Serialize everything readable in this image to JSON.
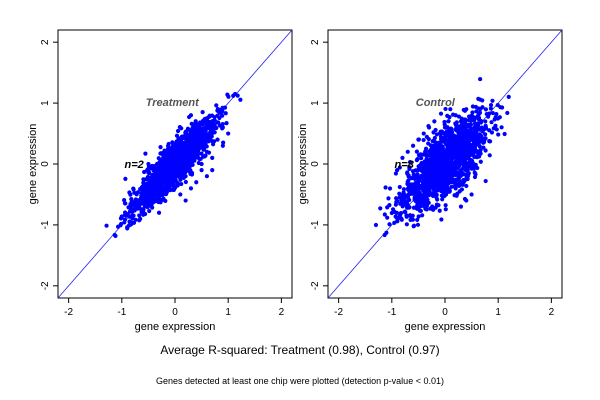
{
  "chart_data": [
    {
      "type": "scatter",
      "panel_label": "Treatment",
      "n_label": "n=2",
      "xlabel": "gene expression",
      "ylabel": "gene expression",
      "xlim": [
        -2.2,
        2.2
      ],
      "ylim": [
        -2.2,
        2.2
      ],
      "xticks": [
        -2,
        -1,
        0,
        1,
        2
      ],
      "yticks": [
        -2,
        -1,
        0,
        1,
        2
      ],
      "point_color": "#0000ff",
      "reference_line": "y = x",
      "cloud": {
        "x_range": [
          -1.15,
          1.15
        ],
        "spread": 0.1
      },
      "outliers": [
        [
          0.5,
          0.0
        ],
        [
          0.6,
          -0.2
        ],
        [
          0.4,
          -0.3
        ],
        [
          0.7,
          0.1
        ],
        [
          0.8,
          0.4
        ],
        [
          0.9,
          0.6
        ],
        [
          0.3,
          -0.4
        ],
        [
          0.2,
          -0.6
        ],
        [
          0.5,
          -0.1
        ],
        [
          0.6,
          0.2
        ],
        [
          0.1,
          -0.5
        ],
        [
          0.7,
          -0.1
        ],
        [
          0.4,
          0.3
        ],
        [
          -0.3,
          -0.8
        ],
        [
          -0.5,
          0.0
        ],
        [
          0.3,
          0.8
        ],
        [
          0.9,
          0.3
        ],
        [
          0.2,
          -0.2
        ],
        [
          -0.1,
          -0.4
        ],
        [
          1.0,
          0.5
        ]
      ]
    },
    {
      "type": "scatter",
      "panel_label": "Control",
      "n_label": "n=8",
      "xlabel": "gene expression",
      "ylabel": "gene expression",
      "xlim": [
        -2.2,
        2.2
      ],
      "ylim": [
        -2.2,
        2.2
      ],
      "xticks": [
        -2,
        -1,
        0,
        1,
        2
      ],
      "yticks": [
        -2,
        -1,
        0,
        1,
        2
      ],
      "point_color": "#0000ff",
      "reference_line": "y = x",
      "cloud": {
        "x_range": [
          -1.15,
          1.15
        ],
        "spread": 0.16
      },
      "outliers": [
        [
          -0.7,
          0.2
        ],
        [
          -0.6,
          0.3
        ],
        [
          -0.3,
          0.6
        ],
        [
          -0.2,
          0.7
        ],
        [
          0.1,
          0.9
        ],
        [
          0.2,
          0.8
        ],
        [
          0.3,
          0.7
        ],
        [
          -0.4,
          0.5
        ],
        [
          0.4,
          0.9
        ],
        [
          0.2,
          -0.4
        ],
        [
          0.4,
          -0.6
        ],
        [
          0.1,
          -0.3
        ],
        [
          0.6,
          0.2
        ],
        [
          0.5,
          -0.5
        ],
        [
          -0.8,
          0.1
        ],
        [
          -0.5,
          0.4
        ],
        [
          -0.1,
          0.5
        ],
        [
          0.0,
          0.6
        ],
        [
          0.7,
          0.4
        ],
        [
          -0.9,
          -0.1
        ],
        [
          0.3,
          -0.7
        ]
      ]
    }
  ],
  "caption": {
    "summary": "Average R-squared: Treatment (0.98), Control (0.97)",
    "footnote": "Genes detected at least one chip were plotted (detection p-value < 0.01)"
  }
}
